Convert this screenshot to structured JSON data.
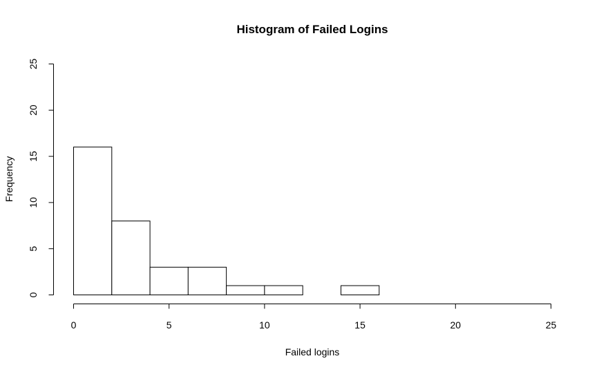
{
  "chart_data": {
    "type": "bar",
    "title": "Histogram of Failed Logins",
    "xlabel": "Failed logins",
    "ylabel": "Frequency",
    "bin_edges": [
      0,
      2,
      4,
      6,
      8,
      10,
      12,
      14,
      16
    ],
    "values": [
      16,
      8,
      3,
      3,
      1,
      1,
      0,
      1
    ],
    "xlim": [
      0,
      25
    ],
    "ylim": [
      0,
      25
    ],
    "x_ticks": [
      0,
      5,
      10,
      15,
      20,
      25
    ],
    "y_ticks": [
      0,
      5,
      10,
      15,
      20,
      25
    ],
    "grid": false,
    "colors": {
      "bar_fill": "#ffffff",
      "bar_stroke": "#000000"
    }
  }
}
